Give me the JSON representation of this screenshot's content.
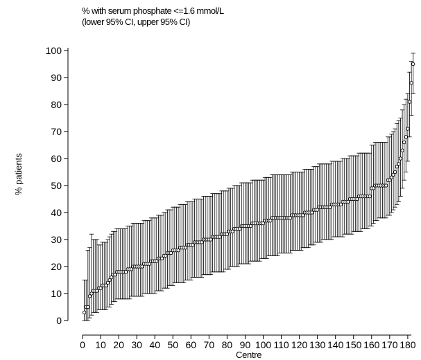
{
  "chart_data": {
    "type": "scatter",
    "title_lines": [
      "% with serum phosphate <=1.6 mmol/L",
      "(lower 95% CI, upper 95% CI)"
    ],
    "xlabel": "Centre",
    "ylabel": "% patients",
    "xlim": [
      0,
      183
    ],
    "ylim": [
      0,
      100
    ],
    "x_ticks": [
      "0",
      "10",
      "20",
      "30",
      "40",
      "50",
      "60",
      "70",
      "80",
      "90",
      "100",
      "110",
      "120",
      "130",
      "140",
      "150",
      "160",
      "170",
      "180"
    ],
    "y_ticks": [
      "0",
      "10",
      "20",
      "30",
      "40",
      "50",
      "60",
      "70",
      "80",
      "90",
      "100"
    ],
    "error_bars": "95% confidence interval",
    "x": [
      1,
      2,
      3,
      4,
      5,
      6,
      7,
      8,
      9,
      10,
      11,
      12,
      13,
      14,
      15,
      16,
      17,
      18,
      19,
      20,
      21,
      22,
      23,
      24,
      25,
      26,
      27,
      28,
      29,
      30,
      31,
      32,
      33,
      34,
      35,
      36,
      37,
      38,
      39,
      40,
      41,
      42,
      43,
      44,
      45,
      46,
      47,
      48,
      49,
      50,
      51,
      52,
      53,
      54,
      55,
      56,
      57,
      58,
      59,
      60,
      61,
      62,
      63,
      64,
      65,
      66,
      67,
      68,
      69,
      70,
      71,
      72,
      73,
      74,
      75,
      76,
      77,
      78,
      79,
      80,
      81,
      82,
      83,
      84,
      85,
      86,
      87,
      88,
      89,
      90,
      91,
      92,
      93,
      94,
      95,
      96,
      97,
      98,
      99,
      100,
      101,
      102,
      103,
      104,
      105,
      106,
      107,
      108,
      109,
      110,
      111,
      112,
      113,
      114,
      115,
      116,
      117,
      118,
      119,
      120,
      121,
      122,
      123,
      124,
      125,
      126,
      127,
      128,
      129,
      130,
      131,
      132,
      133,
      134,
      135,
      136,
      137,
      138,
      139,
      140,
      141,
      142,
      143,
      144,
      145,
      146,
      147,
      148,
      149,
      150,
      151,
      152,
      153,
      154,
      155,
      156,
      157,
      158,
      159,
      160,
      161,
      162,
      163,
      164,
      165,
      166,
      167,
      168,
      169,
      170,
      171,
      172,
      173,
      174,
      175,
      176,
      177,
      178,
      179,
      180,
      181,
      182,
      183
    ],
    "y": [
      3,
      5,
      5,
      9,
      10,
      11,
      11,
      11,
      12,
      12,
      13,
      13,
      13,
      14,
      15,
      16,
      17,
      17,
      18,
      18,
      18,
      18,
      18,
      18,
      19,
      19,
      19,
      20,
      20,
      20,
      20,
      20,
      20,
      21,
      21,
      21,
      21,
      22,
      22,
      22,
      22,
      23,
      23,
      23,
      24,
      24,
      25,
      25,
      25,
      26,
      26,
      26,
      26,
      27,
      27,
      27,
      27,
      28,
      28,
      28,
      28,
      29,
      29,
      29,
      29,
      29,
      30,
      30,
      30,
      30,
      30,
      31,
      31,
      31,
      31,
      31,
      32,
      32,
      32,
      32,
      33,
      33,
      33,
      34,
      34,
      34,
      34,
      35,
      35,
      35,
      35,
      35,
      35,
      36,
      36,
      36,
      36,
      36,
      36,
      36,
      37,
      37,
      37,
      37,
      38,
      38,
      38,
      38,
      38,
      38,
      38,
      38,
      38,
      38,
      38,
      39,
      39,
      39,
      39,
      39,
      39,
      39,
      40,
      40,
      40,
      40,
      40,
      41,
      41,
      41,
      42,
      42,
      42,
      42,
      42,
      42,
      42,
      43,
      43,
      43,
      43,
      43,
      43,
      44,
      44,
      44,
      44,
      45,
      45,
      45,
      45,
      45,
      46,
      46,
      46,
      46,
      46,
      46,
      46,
      49,
      49,
      50,
      50,
      50,
      50,
      50,
      50,
      50,
      52,
      52,
      53,
      54,
      55,
      57,
      58,
      60,
      63,
      66,
      68,
      71,
      81,
      88,
      95
    ],
    "lower": [
      0,
      0,
      0,
      1,
      2,
      3,
      3,
      3,
      4,
      4,
      4,
      4,
      4,
      5,
      5,
      6,
      7,
      7,
      8,
      8,
      8,
      8,
      8,
      8,
      8,
      8,
      9,
      9,
      9,
      9,
      9,
      9,
      9,
      10,
      10,
      10,
      10,
      10,
      10,
      10,
      11,
      11,
      11,
      11,
      12,
      12,
      12,
      13,
      13,
      13,
      14,
      14,
      14,
      14,
      14,
      14,
      15,
      15,
      15,
      15,
      16,
      16,
      16,
      16,
      16,
      16,
      17,
      17,
      17,
      17,
      17,
      18,
      18,
      18,
      18,
      18,
      18,
      18,
      19,
      19,
      19,
      20,
      20,
      20,
      20,
      20,
      21,
      21,
      21,
      21,
      21,
      21,
      22,
      22,
      22,
      22,
      22,
      22,
      23,
      23,
      23,
      23,
      24,
      24,
      24,
      24,
      24,
      24,
      25,
      25,
      25,
      25,
      25,
      25,
      25,
      26,
      26,
      26,
      26,
      26,
      26,
      27,
      27,
      27,
      27,
      28,
      28,
      28,
      29,
      29,
      29,
      29,
      30,
      30,
      30,
      30,
      30,
      30,
      31,
      31,
      31,
      31,
      31,
      31,
      32,
      32,
      32,
      32,
      32,
      33,
      33,
      33,
      33,
      33,
      34,
      34,
      34,
      34,
      35,
      35,
      36,
      37,
      37,
      38,
      38,
      38,
      38,
      38,
      39,
      39,
      40,
      41,
      42,
      43,
      44,
      46,
      49,
      52,
      55,
      59,
      68,
      76,
      84
    ],
    "upper": [
      15,
      15,
      26,
      27,
      32,
      30,
      30,
      30,
      28,
      28,
      29,
      29,
      29,
      30,
      31,
      32,
      33,
      33,
      34,
      34,
      34,
      34,
      34,
      34,
      35,
      35,
      35,
      36,
      36,
      36,
      36,
      36,
      36,
      37,
      37,
      37,
      37,
      38,
      38,
      38,
      38,
      39,
      39,
      39,
      40,
      40,
      41,
      41,
      41,
      42,
      42,
      42,
      42,
      43,
      43,
      43,
      43,
      44,
      44,
      44,
      44,
      45,
      45,
      45,
      45,
      45,
      46,
      46,
      46,
      46,
      46,
      47,
      47,
      47,
      47,
      47,
      48,
      48,
      48,
      48,
      49,
      49,
      49,
      50,
      50,
      50,
      50,
      51,
      51,
      51,
      51,
      51,
      51,
      52,
      52,
      52,
      52,
      52,
      52,
      52,
      53,
      53,
      53,
      53,
      54,
      54,
      54,
      54,
      54,
      54,
      54,
      54,
      54,
      54,
      54,
      55,
      55,
      55,
      55,
      55,
      55,
      55,
      56,
      56,
      56,
      56,
      56,
      57,
      57,
      57,
      58,
      58,
      58,
      58,
      58,
      58,
      58,
      59,
      59,
      59,
      59,
      59,
      59,
      60,
      60,
      60,
      60,
      61,
      61,
      61,
      61,
      61,
      62,
      62,
      62,
      62,
      62,
      62,
      62,
      65,
      65,
      66,
      66,
      66,
      66,
      66,
      66,
      66,
      68,
      68,
      69,
      70,
      71,
      73,
      74,
      75,
      78,
      80,
      82,
      84,
      92,
      96,
      99
    ]
  }
}
